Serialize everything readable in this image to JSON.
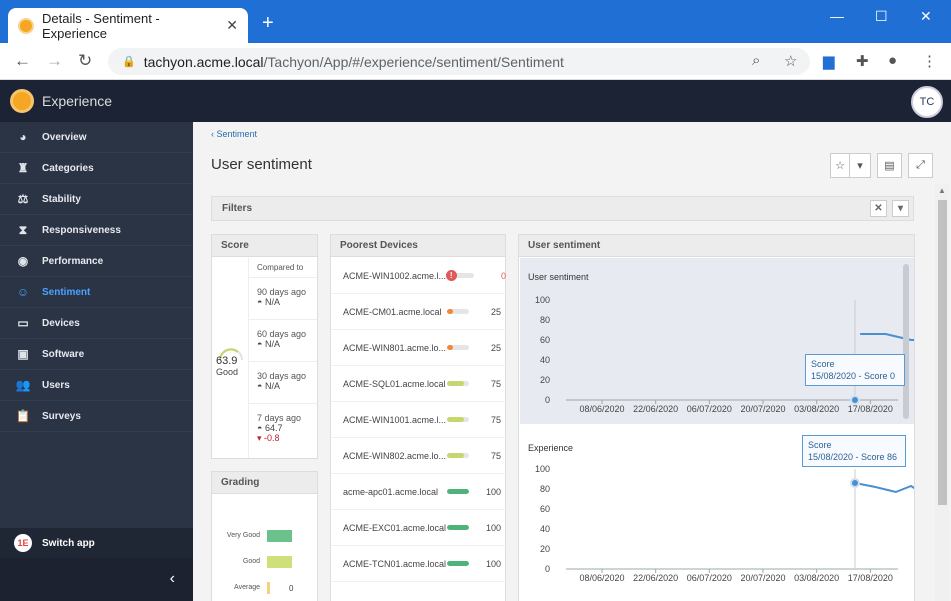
{
  "browser": {
    "tab_title": "Details - Sentiment - Experience",
    "url_host": "tachyon.acme.local",
    "url_path": "/Tachyon/App/#/experience/sentiment/Sentiment"
  },
  "app": {
    "name": "Experience",
    "avatar": "TC"
  },
  "sidebar": {
    "items": [
      {
        "label": "Overview",
        "icon": "pie-icon"
      },
      {
        "label": "Categories",
        "icon": "binoculars-icon"
      },
      {
        "label": "Stability",
        "icon": "balance-icon"
      },
      {
        "label": "Responsiveness",
        "icon": "hourglass-icon"
      },
      {
        "label": "Performance",
        "icon": "gamepad-icon"
      },
      {
        "label": "Sentiment",
        "icon": "smile-icon",
        "active": true
      },
      {
        "label": "Devices",
        "icon": "monitor-icon"
      },
      {
        "label": "Software",
        "icon": "software-icon"
      },
      {
        "label": "Users",
        "icon": "users-icon"
      },
      {
        "label": "Surveys",
        "icon": "clipboard-icon"
      }
    ],
    "switch_app": "Switch app"
  },
  "page": {
    "breadcrumb": "Sentiment",
    "title": "User sentiment",
    "filters_label": "Filters"
  },
  "score": {
    "title": "Score",
    "value": "63.9",
    "rating": "Good",
    "compared_to": "Compared to",
    "comparisons": [
      {
        "period": "90 days ago",
        "value": "N/A"
      },
      {
        "period": "60 days ago",
        "value": "N/A"
      },
      {
        "period": "30 days ago",
        "value": "N/A"
      },
      {
        "period": "7 days ago",
        "value": "64.7",
        "delta": "-0.8"
      }
    ]
  },
  "grading": {
    "title": "Grading",
    "rows": [
      {
        "label": "Very Good",
        "fraction": 0.9,
        "color": "#6cc08b"
      },
      {
        "label": "Good",
        "fraction": 0.9,
        "color": "#cfe07a"
      },
      {
        "label": "Average",
        "fraction": 0.1,
        "color": "#f2d27a",
        "value": "0"
      }
    ]
  },
  "poorest": {
    "title": "Poorest Devices",
    "devices": [
      {
        "name": "ACME-WIN1002.acme.l...",
        "score": "0",
        "fraction": 0,
        "color": "#e05a5a",
        "alert": true
      },
      {
        "name": "ACME-CM01.acme.local",
        "score": "25",
        "fraction": 0.25,
        "color": "#f0883a"
      },
      {
        "name": "ACME-WIN801.acme.lo...",
        "score": "25",
        "fraction": 0.25,
        "color": "#f0883a"
      },
      {
        "name": "ACME-SQL01.acme.local",
        "score": "75",
        "fraction": 0.75,
        "color": "#c7d66e"
      },
      {
        "name": "ACME-WIN1001.acme.l...",
        "score": "75",
        "fraction": 0.75,
        "color": "#c7d66e"
      },
      {
        "name": "ACME-WIN802.acme.lo...",
        "score": "75",
        "fraction": 0.75,
        "color": "#c7d66e"
      },
      {
        "name": "acme-apc01.acme.local",
        "score": "100",
        "fraction": 1,
        "color": "#4db37a"
      },
      {
        "name": "ACME-EXC01.acme.local",
        "score": "100",
        "fraction": 1,
        "color": "#4db37a"
      },
      {
        "name": "ACME-TCN01.acme.local",
        "score": "100",
        "fraction": 1,
        "color": "#4db37a"
      }
    ]
  },
  "sentiment_panel": {
    "title": "User sentiment"
  },
  "chart_data": [
    {
      "type": "line",
      "title": "User sentiment",
      "x": [
        "08/06/2020",
        "22/06/2020",
        "06/07/2020",
        "20/07/2020",
        "03/08/2020",
        "17/08/2020"
      ],
      "ylim": [
        0,
        100
      ],
      "yticks": [
        0,
        20,
        40,
        60,
        80,
        100
      ],
      "series": [
        {
          "values": [
            [
              15.0,
              0
            ],
            [
              15.1,
              66
            ],
            [
              15.6,
              66
            ],
            [
              16.1,
              60
            ],
            [
              16.6,
              60
            ],
            [
              17.0,
              65
            ],
            [
              17.3,
              64
            ]
          ]
        }
      ],
      "tooltip": {
        "title": "Score",
        "text": "15/08/2020 - Score 0"
      }
    },
    {
      "type": "line",
      "title": "Experience",
      "x": [
        "08/06/2020",
        "22/06/2020",
        "06/07/2020",
        "20/07/2020",
        "03/08/2020",
        "17/08/2020"
      ],
      "ylim": [
        0,
        100
      ],
      "yticks": [
        0,
        20,
        40,
        60,
        80,
        100
      ],
      "series": [
        {
          "values": [
            [
              15.0,
              86
            ],
            [
              15.4,
              82
            ],
            [
              15.8,
              77
            ],
            [
              16.1,
              83
            ],
            [
              16.4,
              73
            ],
            [
              16.7,
              84
            ],
            [
              17.0,
              80
            ],
            [
              17.3,
              82
            ],
            [
              17.6,
              81
            ]
          ]
        }
      ],
      "tooltip": {
        "title": "Score",
        "text": "15/08/2020 - Score 86"
      }
    }
  ]
}
